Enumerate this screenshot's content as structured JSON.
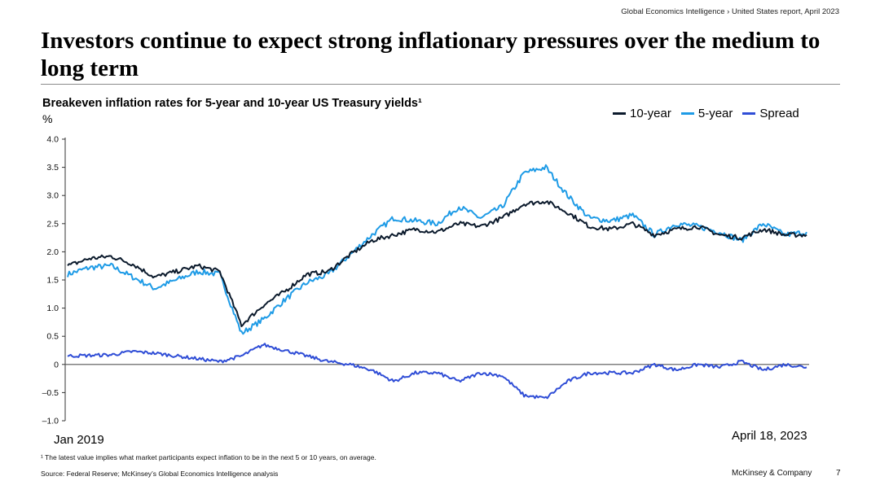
{
  "header": {
    "breadcrumb": "Global Economics Intelligence › United States report, April 2023"
  },
  "page_title": "Investors continue to expect strong inflationary pressures over the medium to long term",
  "colors": {
    "ten_year": "#0b1a2c",
    "five_year": "#1e9be6",
    "spread": "#2f4dd6",
    "zero_line": "#555555"
  },
  "chart_data": {
    "type": "line",
    "title": "Breakeven inflation rates for 5-year and 10-year US Treasury yields¹",
    "ylabel": "%",
    "ylim": [
      -1.0,
      4.0
    ],
    "yticks": [
      4.0,
      3.5,
      3.0,
      2.5,
      2.0,
      1.5,
      1.0,
      0.5,
      0,
      -0.5,
      -1.0
    ],
    "ytick_labels": [
      "4.0",
      "3.5",
      "3.0",
      "2.5",
      "2.0",
      "1.5",
      "1.0",
      "0.5",
      "0",
      "–0.5",
      "–1.0"
    ],
    "x_start_label": "Jan 2019",
    "x_end_label": "April 18, 2023",
    "x": [
      "2019-01",
      "2019-03",
      "2019-05",
      "2019-07",
      "2019-09",
      "2019-11",
      "2020-01",
      "2020-02",
      "2020-03",
      "2020-04",
      "2020-06",
      "2020-08",
      "2020-10",
      "2020-12",
      "2021-02",
      "2021-04",
      "2021-06",
      "2021-08",
      "2021-10",
      "2021-12",
      "2022-02",
      "2022-03",
      "2022-04",
      "2022-05",
      "2022-06",
      "2022-07",
      "2022-08",
      "2022-09",
      "2022-10",
      "2022-11",
      "2022-12",
      "2023-01",
      "2023-02",
      "2023-03",
      "2023-04"
    ],
    "legend": [
      "10-year",
      "5-year",
      "Spread"
    ],
    "series": [
      {
        "name": "10-year",
        "values": [
          1.75,
          1.88,
          1.92,
          1.78,
          1.55,
          1.65,
          1.75,
          1.65,
          0.7,
          1.05,
          1.3,
          1.6,
          1.65,
          1.95,
          2.2,
          2.3,
          2.4,
          2.35,
          2.5,
          2.45,
          2.6,
          2.85,
          2.9,
          2.7,
          2.45,
          2.4,
          2.5,
          2.3,
          2.4,
          2.45,
          2.3,
          2.25,
          2.4,
          2.3,
          2.3
        ]
      },
      {
        "name": "5-year",
        "values": [
          1.6,
          1.72,
          1.75,
          1.55,
          1.35,
          1.5,
          1.65,
          1.6,
          0.55,
          0.8,
          1.15,
          1.45,
          1.6,
          1.95,
          2.3,
          2.6,
          2.55,
          2.5,
          2.8,
          2.6,
          2.8,
          3.4,
          3.5,
          3.0,
          2.6,
          2.55,
          2.65,
          2.3,
          2.5,
          2.45,
          2.35,
          2.2,
          2.5,
          2.3,
          2.35
        ]
      },
      {
        "name": "Spread",
        "values": [
          0.15,
          0.16,
          0.17,
          0.23,
          0.2,
          0.15,
          0.1,
          0.05,
          0.15,
          0.35,
          0.25,
          0.15,
          0.05,
          0.0,
          -0.1,
          -0.3,
          -0.15,
          -0.15,
          -0.3,
          -0.15,
          -0.2,
          -0.55,
          -0.6,
          -0.3,
          -0.15,
          -0.15,
          -0.15,
          0.0,
          -0.1,
          0.0,
          -0.05,
          0.05,
          -0.1,
          0.0,
          -0.05
        ]
      }
    ]
  },
  "footnote": "¹ The latest value implies what market participants expect inflation to be in the next 5 or 10 years, on average.",
  "source": "Source: Federal Reserve; McKinsey’s Global Economics Intelligence analysis",
  "brand": "McKinsey & Company",
  "page_number": "7"
}
